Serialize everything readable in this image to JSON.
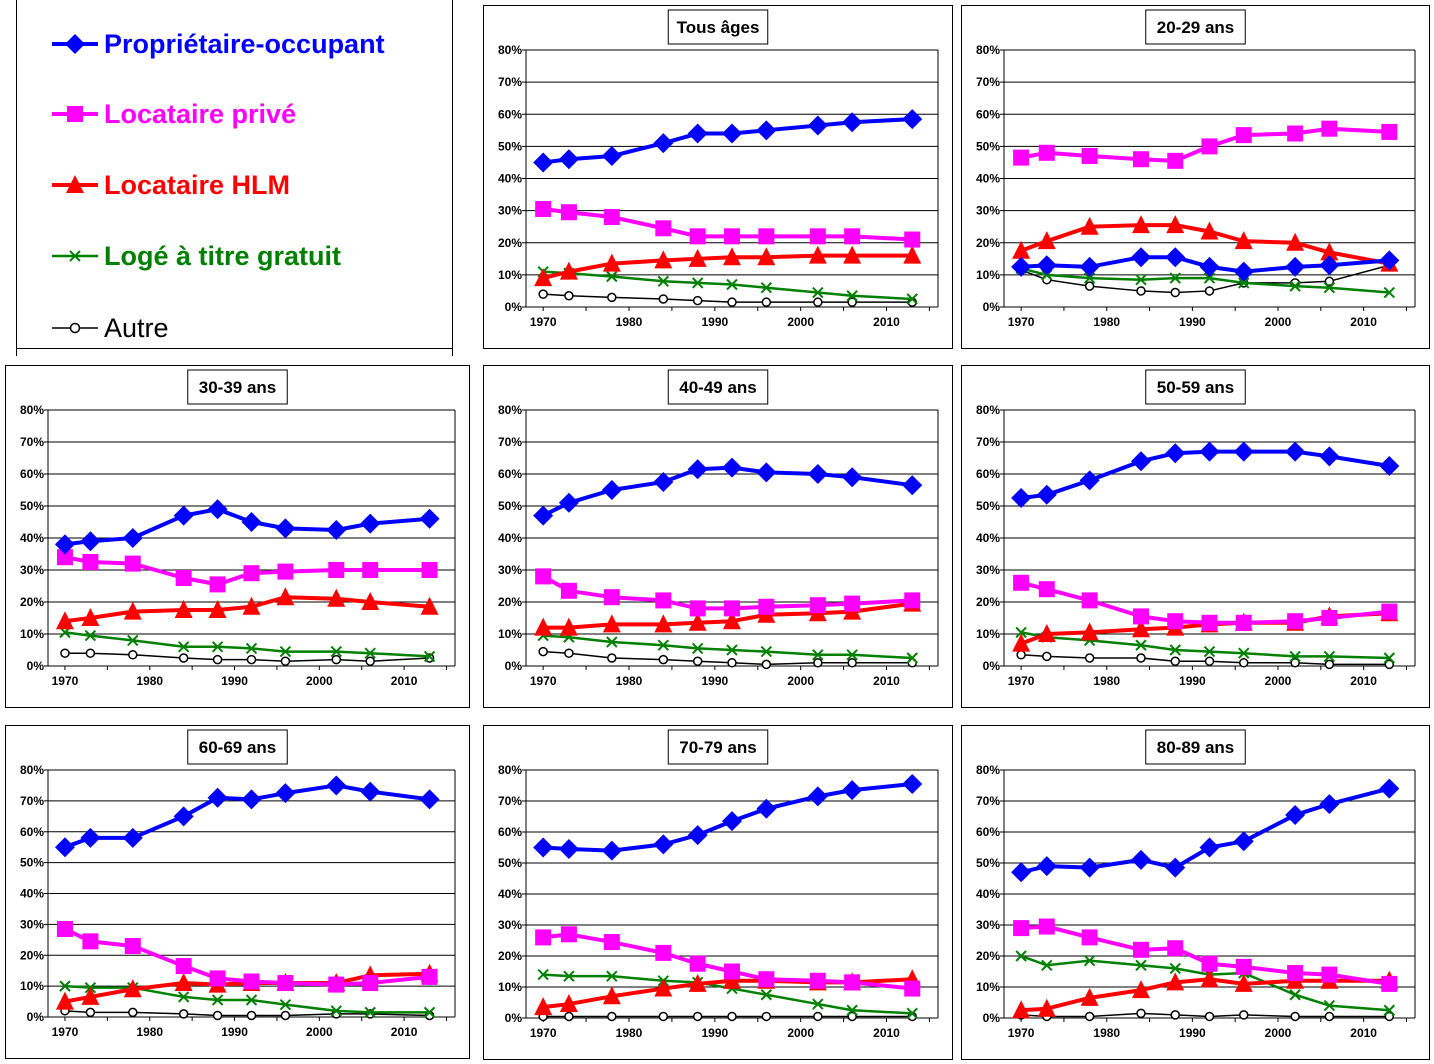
{
  "legend": {
    "items": [
      {
        "label": "Propriétaire-occupant",
        "color": "#0000FF",
        "marker": "diamond"
      },
      {
        "label": "Locataire privé",
        "color": "#FF00FF",
        "marker": "square"
      },
      {
        "label": "Locataire HLM",
        "color": "#FF0000",
        "marker": "triangle"
      },
      {
        "label": "Logé à titre gratuit",
        "color": "#008000",
        "marker": "x"
      },
      {
        "label": "Autre",
        "color": "#000000",
        "marker": "circle"
      }
    ]
  },
  "chart_data": [
    {
      "type": "line",
      "title": "Tous âges",
      "x": [
        1970,
        1973,
        1978,
        1984,
        1988,
        1992,
        1996,
        2002,
        2006,
        2013
      ],
      "xticks": [
        "1970",
        "1980",
        "1990",
        "2000",
        "2010"
      ],
      "yticks": [
        "0%",
        "10%",
        "20%",
        "30%",
        "40%",
        "50%",
        "60%",
        "70%",
        "80%"
      ],
      "ylim": [
        0,
        80
      ],
      "series": [
        {
          "name": "Propriétaire-occupant",
          "values": [
            45,
            46,
            47,
            51,
            54,
            54,
            55,
            56.5,
            57.5,
            58.5
          ]
        },
        {
          "name": "Locataire privé",
          "values": [
            30.5,
            29.5,
            28,
            24.5,
            22,
            22,
            22,
            22,
            22,
            21
          ]
        },
        {
          "name": "Locataire HLM",
          "values": [
            9,
            11,
            13.5,
            14.5,
            15,
            15.5,
            15.5,
            16,
            16,
            16
          ]
        },
        {
          "name": "Logé à titre gratuit",
          "values": [
            11,
            10.5,
            9.5,
            8,
            7.5,
            7,
            6,
            4.5,
            3.5,
            2.5
          ]
        },
        {
          "name": "Autre",
          "values": [
            4,
            3.5,
            3,
            2.5,
            2,
            1.5,
            1.5,
            1.5,
            1.5,
            1.5
          ]
        }
      ]
    },
    {
      "type": "line",
      "title": "20-29 ans",
      "x": [
        1970,
        1973,
        1978,
        1984,
        1988,
        1992,
        1996,
        2002,
        2006,
        2013
      ],
      "xticks": [
        "1970",
        "1980",
        "1990",
        "2000",
        "2010"
      ],
      "yticks": [
        "0%",
        "10%",
        "20%",
        "30%",
        "40%",
        "50%",
        "60%",
        "70%",
        "80%"
      ],
      "ylim": [
        0,
        80
      ],
      "series": [
        {
          "name": "Propriétaire-occupant",
          "values": [
            12.5,
            13,
            12.5,
            15.5,
            15.5,
            12.5,
            11,
            12.5,
            13,
            14.5
          ]
        },
        {
          "name": "Locataire privé",
          "values": [
            46.5,
            48,
            47,
            46,
            45.5,
            50,
            53.5,
            54,
            55.5,
            54.5
          ]
        },
        {
          "name": "Locataire HLM",
          "values": [
            17.5,
            20.5,
            25,
            25.5,
            25.5,
            23.5,
            20.5,
            20,
            17,
            13.5
          ]
        },
        {
          "name": "Logé à titre gratuit",
          "values": [
            12,
            10,
            9,
            8.5,
            9,
            9,
            7.5,
            6.5,
            6,
            4.5
          ]
        },
        {
          "name": "Autre",
          "values": [
            11.5,
            8.5,
            6.5,
            5,
            4.5,
            5,
            7.5,
            7.5,
            8,
            13
          ]
        }
      ]
    },
    {
      "type": "line",
      "title": "30-39 ans",
      "x": [
        1970,
        1973,
        1978,
        1984,
        1988,
        1992,
        1996,
        2002,
        2006,
        2013
      ],
      "xticks": [
        "1970",
        "1980",
        "1990",
        "2000",
        "2010"
      ],
      "yticks": [
        "0%",
        "10%",
        "20%",
        "30%",
        "40%",
        "50%",
        "60%",
        "70%",
        "80%"
      ],
      "ylim": [
        0,
        80
      ],
      "series": [
        {
          "name": "Propriétaire-occupant",
          "values": [
            38,
            39,
            40,
            47,
            49,
            45,
            43,
            42.5,
            44.5,
            46
          ]
        },
        {
          "name": "Locataire privé",
          "values": [
            34,
            32.5,
            32,
            27.5,
            25.5,
            29,
            29.5,
            30,
            30,
            30
          ]
        },
        {
          "name": "Locataire HLM",
          "values": [
            14,
            15,
            17,
            17.5,
            17.5,
            18.5,
            21.5,
            21,
            20,
            18.5
          ]
        },
        {
          "name": "Logé à titre gratuit",
          "values": [
            10.5,
            9.5,
            8,
            6,
            6,
            5.5,
            4.5,
            4.5,
            4,
            3
          ]
        },
        {
          "name": "Autre",
          "values": [
            4,
            4,
            3.5,
            2.5,
            2,
            2,
            1.5,
            2,
            1.5,
            2.5
          ]
        }
      ]
    },
    {
      "type": "line",
      "title": "40-49 ans",
      "x": [
        1970,
        1973,
        1978,
        1984,
        1988,
        1992,
        1996,
        2002,
        2006,
        2013
      ],
      "xticks": [
        "1970",
        "1980",
        "1990",
        "2000",
        "2010"
      ],
      "yticks": [
        "0%",
        "10%",
        "20%",
        "30%",
        "40%",
        "50%",
        "60%",
        "70%",
        "80%"
      ],
      "ylim": [
        0,
        80
      ],
      "series": [
        {
          "name": "Propriétaire-occupant",
          "values": [
            47,
            51,
            55,
            57.5,
            61.5,
            62,
            60.5,
            60,
            59,
            56.5
          ]
        },
        {
          "name": "Locataire privé",
          "values": [
            28,
            23.5,
            21.5,
            20.5,
            18,
            18,
            18.5,
            19,
            19.5,
            20.5
          ]
        },
        {
          "name": "Locataire HLM",
          "values": [
            12,
            12,
            13,
            13,
            13.5,
            14,
            16,
            16.5,
            17,
            19.5
          ]
        },
        {
          "name": "Logé à titre gratuit",
          "values": [
            9.5,
            9,
            7.5,
            6.5,
            5.5,
            5,
            4.5,
            3.5,
            3.5,
            2.5
          ]
        },
        {
          "name": "Autre",
          "values": [
            4.5,
            4,
            2.5,
            2,
            1.5,
            1,
            0.5,
            1,
            1,
            1
          ]
        }
      ]
    },
    {
      "type": "line",
      "title": "50-59 ans",
      "x": [
        1970,
        1973,
        1978,
        1984,
        1988,
        1992,
        1996,
        2002,
        2006,
        2013
      ],
      "xticks": [
        "1970",
        "1980",
        "1990",
        "2000",
        "2010"
      ],
      "yticks": [
        "0%",
        "10%",
        "20%",
        "30%",
        "40%",
        "50%",
        "60%",
        "70%",
        "80%"
      ],
      "ylim": [
        0,
        80
      ],
      "series": [
        {
          "name": "Propriétaire-occupant",
          "values": [
            52.5,
            53.5,
            58,
            64,
            66.5,
            67,
            67,
            67,
            65.5,
            62.5
          ]
        },
        {
          "name": "Locataire privé",
          "values": [
            26,
            24,
            20.5,
            15.5,
            14,
            13.5,
            13.5,
            14,
            15,
            17
          ]
        },
        {
          "name": "Locataire HLM",
          "values": [
            7,
            10,
            10.5,
            11.5,
            12,
            13,
            13.5,
            13.5,
            15.5,
            16.5
          ]
        },
        {
          "name": "Logé à titre gratuit",
          "values": [
            10.5,
            9,
            8,
            6.5,
            5,
            4.5,
            4,
            3,
            3,
            2.5
          ]
        },
        {
          "name": "Autre",
          "values": [
            3.5,
            3,
            2.5,
            2.5,
            1.5,
            1.5,
            1,
            1,
            0.5,
            0.5
          ]
        }
      ]
    },
    {
      "type": "line",
      "title": "60-69 ans",
      "x": [
        1970,
        1973,
        1978,
        1984,
        1988,
        1992,
        1996,
        2002,
        2006,
        2013
      ],
      "xticks": [
        "1970",
        "1980",
        "1990",
        "2000",
        "2010"
      ],
      "yticks": [
        "0%",
        "10%",
        "20%",
        "30%",
        "40%",
        "50%",
        "60%",
        "70%",
        "80%"
      ],
      "ylim": [
        0,
        80
      ],
      "series": [
        {
          "name": "Propriétaire-occupant",
          "values": [
            55,
            58,
            58,
            65,
            71,
            70.5,
            72.5,
            75,
            73,
            70.5
          ]
        },
        {
          "name": "Locataire privé",
          "values": [
            28.5,
            24.5,
            23,
            16.5,
            12.5,
            11.5,
            11,
            10.5,
            11,
            13
          ]
        },
        {
          "name": "Locataire HLM",
          "values": [
            5,
            6.5,
            9,
            11,
            10.5,
            11,
            11,
            11,
            13.5,
            14
          ]
        },
        {
          "name": "Logé à titre gratuit",
          "values": [
            10,
            9.5,
            9.5,
            6.5,
            5.5,
            5.5,
            4,
            2,
            1.5,
            1.5
          ]
        },
        {
          "name": "Autre",
          "values": [
            2,
            1.5,
            1.5,
            1,
            0.5,
            0.5,
            0.5,
            1,
            1,
            0.5
          ]
        }
      ]
    },
    {
      "type": "line",
      "title": "70-79 ans",
      "x": [
        1970,
        1973,
        1978,
        1984,
        1988,
        1992,
        1996,
        2002,
        2006,
        2013
      ],
      "xticks": [
        "1970",
        "1980",
        "1990",
        "2000",
        "2010"
      ],
      "yticks": [
        "0%",
        "10%",
        "20%",
        "30%",
        "40%",
        "50%",
        "60%",
        "70%",
        "80%"
      ],
      "ylim": [
        0,
        80
      ],
      "series": [
        {
          "name": "Propriétaire-occupant",
          "values": [
            55,
            54.5,
            54,
            56,
            59,
            63.5,
            67.5,
            71.5,
            73.5,
            75.5
          ]
        },
        {
          "name": "Locataire privé",
          "values": [
            26,
            27,
            24.5,
            21,
            17.5,
            15,
            12.5,
            12,
            11.5,
            9.5
          ]
        },
        {
          "name": "Locataire HLM",
          "values": [
            3.5,
            4.5,
            7,
            9.5,
            11,
            12,
            12,
            11.5,
            11.5,
            12.5
          ]
        },
        {
          "name": "Logé à titre gratuit",
          "values": [
            14,
            13.5,
            13.5,
            12,
            11.5,
            9.5,
            7.5,
            4.5,
            2.5,
            1.5
          ]
        },
        {
          "name": "Autre",
          "values": [
            0.5,
            0.5,
            0.5,
            0.5,
            0.5,
            0.5,
            0.5,
            0.5,
            0.5,
            0.5
          ]
        }
      ]
    },
    {
      "type": "line",
      "title": "80-89 ans",
      "x": [
        1970,
        1973,
        1978,
        1984,
        1988,
        1992,
        1996,
        2002,
        2006,
        2013
      ],
      "xticks": [
        "1970",
        "1980",
        "1990",
        "2000",
        "2010"
      ],
      "yticks": [
        "0%",
        "10%",
        "20%",
        "30%",
        "40%",
        "50%",
        "60%",
        "70%",
        "80%"
      ],
      "ylim": [
        0,
        80
      ],
      "series": [
        {
          "name": "Propriétaire-occupant",
          "values": [
            47,
            49,
            48.5,
            51,
            48.5,
            55,
            57,
            65.5,
            69,
            74
          ]
        },
        {
          "name": "Locataire privé",
          "values": [
            29,
            29.5,
            26,
            22,
            22.5,
            17.5,
            16.5,
            14.5,
            14,
            11
          ]
        },
        {
          "name": "Locataire HLM",
          "values": [
            2.5,
            3,
            6.5,
            9,
            11.5,
            12.5,
            11,
            12,
            12,
            12
          ]
        },
        {
          "name": "Logé à titre gratuit",
          "values": [
            20,
            17,
            18.5,
            17,
            16,
            14,
            14.5,
            7.5,
            4,
            2.5
          ]
        },
        {
          "name": "Autre",
          "values": [
            1,
            0.5,
            0.5,
            1.5,
            1,
            0.5,
            1,
            0.5,
            0.5,
            0.5
          ]
        }
      ]
    }
  ]
}
